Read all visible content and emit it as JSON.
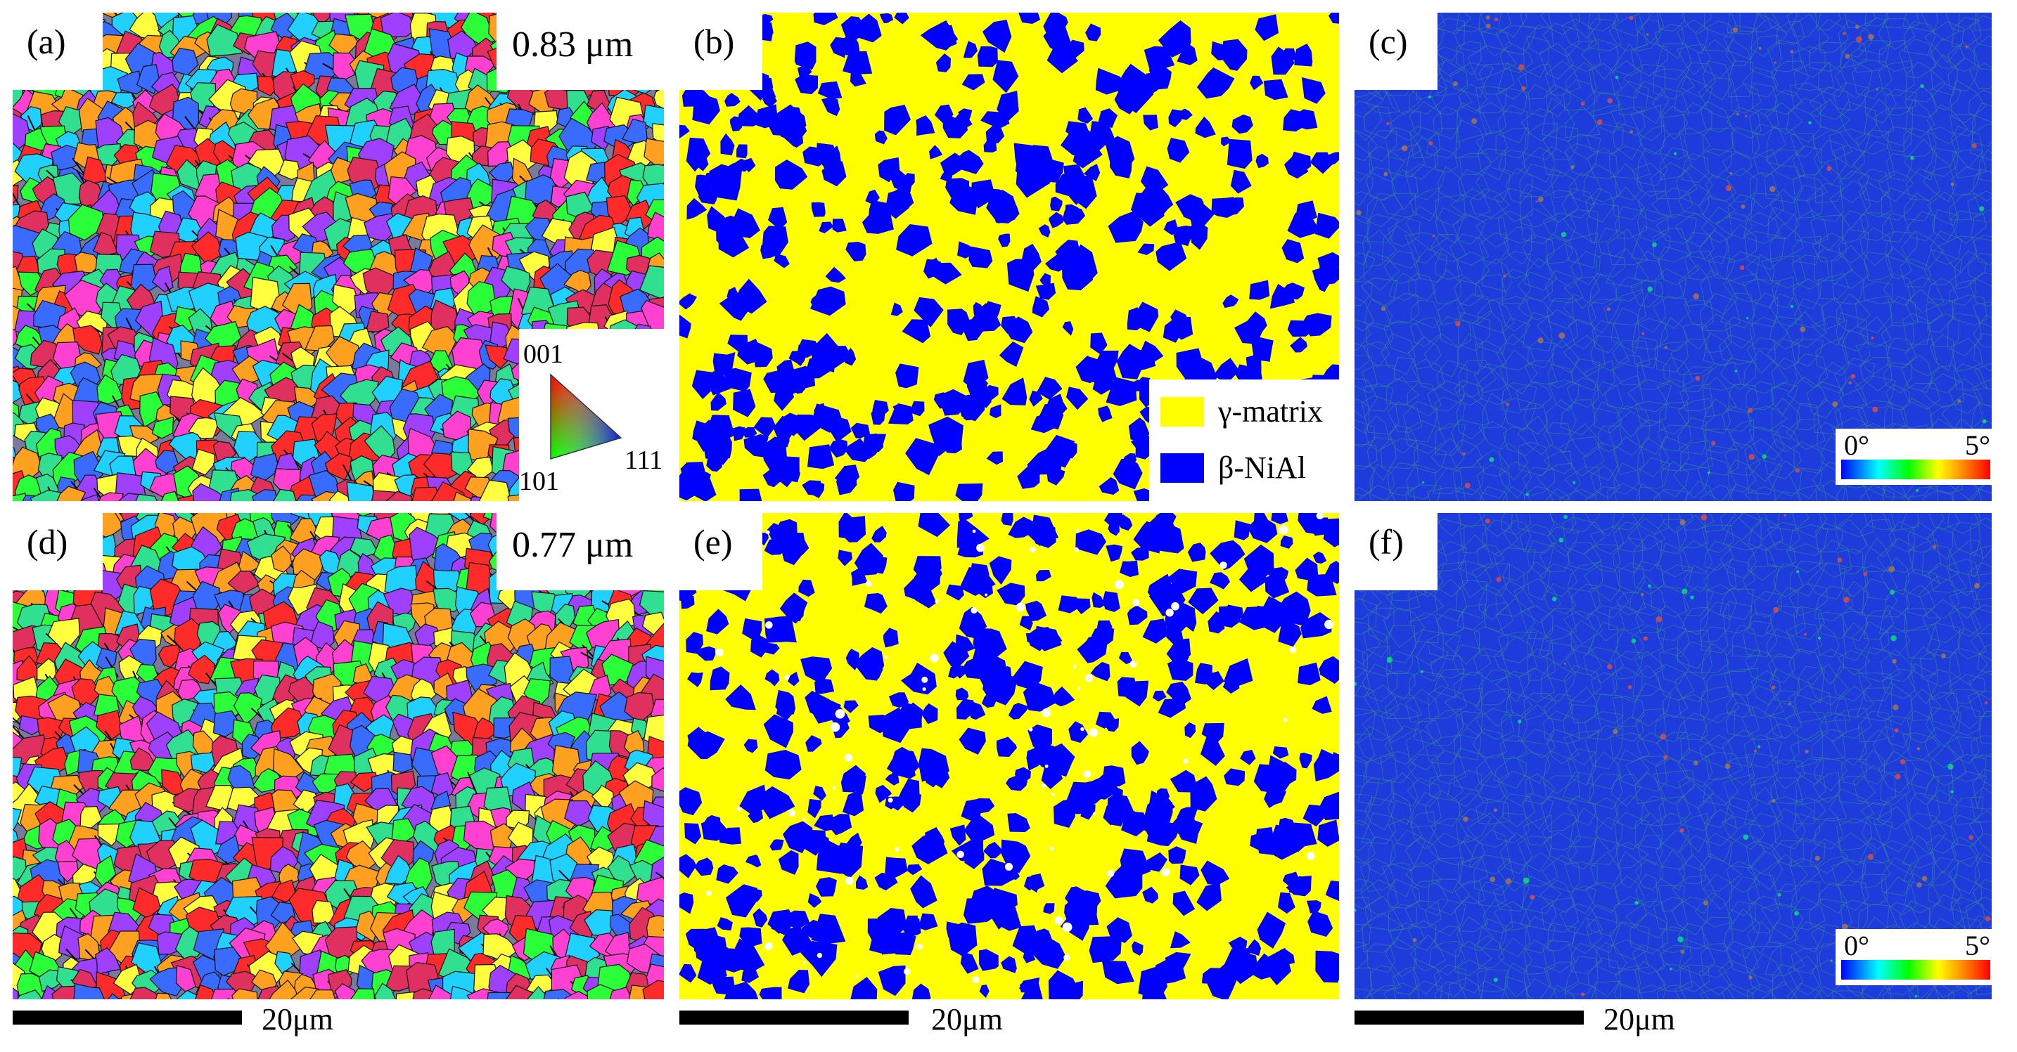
{
  "panels": {
    "a": {
      "label": "(a)",
      "grain_size": "0.83 μm"
    },
    "b": {
      "label": "(b)"
    },
    "c": {
      "label": "(c)"
    },
    "d": {
      "label": "(d)",
      "grain_size": "0.77 μm"
    },
    "e": {
      "label": "(e)"
    },
    "f": {
      "label": "(f)"
    }
  },
  "ipf_legend": {
    "top": "001",
    "left": "101",
    "right": "111"
  },
  "phase_legend": [
    {
      "name": "γ-matrix",
      "color": "#ffff00"
    },
    {
      "name": "β-NiAl",
      "color": "#0000ff"
    }
  ],
  "kam_colorbar": {
    "min": "0°",
    "max": "5°"
  },
  "scale_bar": {
    "label": "20μm"
  },
  "colors": {
    "ipf_palette": [
      "#ff2a2a",
      "#2aff3a",
      "#3a6bff",
      "#ff40d0",
      "#20d0ff",
      "#ffa020",
      "#a040ff",
      "#ffff40",
      "#30e090",
      "#e03060"
    ],
    "kam_base": "#1e3cdc"
  }
}
